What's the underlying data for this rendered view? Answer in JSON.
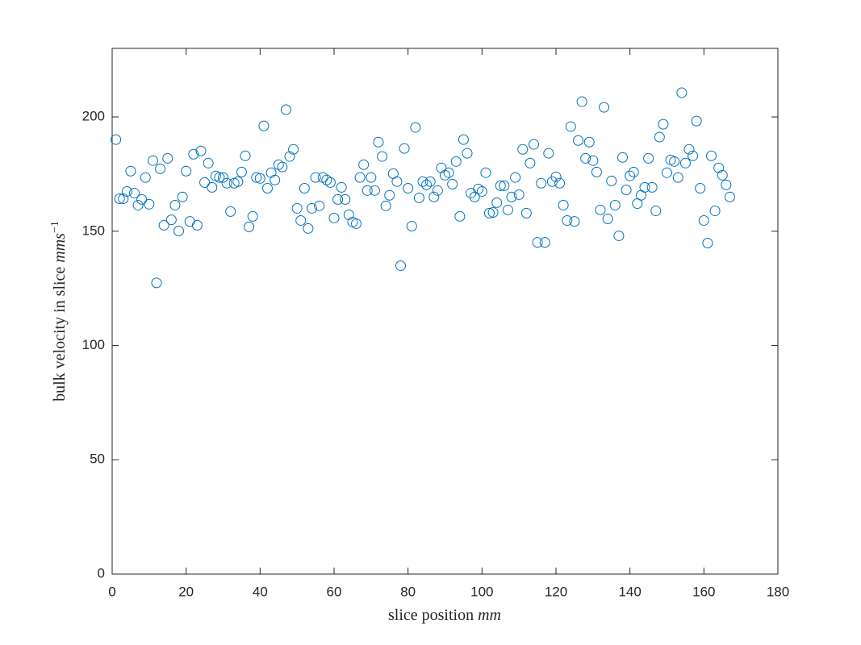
{
  "chart_data": {
    "type": "scatter",
    "x_label": "slice position",
    "x_label_unit": "mm",
    "y_label": "bulk velocity in slice",
    "y_label_unit": "mms",
    "y_label_unit_exponent": "−1",
    "color": "#0072bd",
    "marker": "circle",
    "xlim": [
      0,
      180
    ],
    "xticks": [
      0,
      20,
      40,
      60,
      80,
      100,
      120,
      140,
      160,
      180
    ],
    "ylim": [
      0,
      230
    ],
    "yticks": [
      0,
      50,
      100,
      150,
      200
    ],
    "grid": false,
    "x": [
      1,
      2,
      3,
      4,
      5,
      6,
      7,
      8,
      9,
      10,
      11,
      12,
      13,
      14,
      15,
      16,
      17,
      18,
      19,
      20,
      21,
      22,
      23,
      24,
      25,
      26,
      27,
      28,
      29,
      30,
      31,
      32,
      33,
      34,
      35,
      36,
      37,
      38,
      39,
      40,
      41,
      42,
      43,
      44,
      45,
      46,
      47,
      48,
      49,
      50,
      51,
      52,
      53,
      54,
      55,
      56,
      57,
      58,
      59,
      60,
      61,
      62,
      63,
      64,
      65,
      66,
      67,
      68,
      69,
      70,
      71,
      72,
      73,
      74,
      75,
      76,
      77,
      78,
      79,
      80,
      81,
      82,
      83,
      84,
      85,
      86,
      87,
      88,
      89,
      90,
      91,
      92,
      93,
      94,
      95,
      96,
      97,
      98,
      99,
      100,
      101,
      102,
      103,
      104,
      105,
      106,
      107,
      108,
      109,
      110,
      111,
      112,
      113,
      114,
      115,
      116,
      117,
      118,
      119,
      120,
      121,
      122,
      123,
      124,
      125,
      126,
      127,
      128,
      129,
      130,
      131,
      132,
      133,
      134,
      135,
      136,
      137,
      138,
      139,
      140,
      141,
      142,
      143,
      144,
      145,
      146,
      147,
      148,
      149,
      150,
      151,
      152,
      153,
      154,
      155,
      156,
      157,
      158,
      159,
      160,
      161,
      162,
      163,
      164,
      165,
      166,
      167
    ],
    "values": [
      190.1,
      164.2,
      164.2,
      167.4,
      176.3,
      166.7,
      161.4,
      163.9,
      173.5,
      161.8,
      180.9,
      127.4,
      177.3,
      152.6,
      181.9,
      155.0,
      161.4,
      150.1,
      165.0,
      176.3,
      154.3,
      183.7,
      152.6,
      185.1,
      171.3,
      179.8,
      169.2,
      174.2,
      173.5,
      173.5,
      171.0,
      158.6,
      171.0,
      171.7,
      175.9,
      183.0,
      151.9,
      156.5,
      173.5,
      173.1,
      196.1,
      168.8,
      175.6,
      172.4,
      179.1,
      178.1,
      203.2,
      182.7,
      185.8,
      160.0,
      154.7,
      168.8,
      151.2,
      160.0,
      173.5,
      161.1,
      173.5,
      172.4,
      171.3,
      155.8,
      163.9,
      169.2,
      163.9,
      157.2,
      154.0,
      153.3,
      173.5,
      179.1,
      167.8,
      173.5,
      167.8,
      189.0,
      182.7,
      161.1,
      165.7,
      175.2,
      171.7,
      134.9,
      186.2,
      168.8,
      152.2,
      195.4,
      164.6,
      171.7,
      170.3,
      171.7,
      165.0,
      167.8,
      177.7,
      174.5,
      175.6,
      170.6,
      180.5,
      156.5,
      190.1,
      184.1,
      166.7,
      165.0,
      168.5,
      167.4,
      175.6,
      157.9,
      158.2,
      162.5,
      169.9,
      169.9,
      159.3,
      165.0,
      173.5,
      166.0,
      185.8,
      157.9,
      179.8,
      188.0,
      145.1,
      171.0,
      145.1,
      184.1,
      171.7,
      173.8,
      171.0,
      161.4,
      154.7,
      195.8,
      154.3,
      189.7,
      206.7,
      181.9,
      189.0,
      180.9,
      175.9,
      159.3,
      204.2,
      155.4,
      172.0,
      161.4,
      148.0,
      182.3,
      168.1,
      174.2,
      175.9,
      162.1,
      165.7,
      169.2,
      181.9,
      169.2,
      158.9,
      191.2,
      196.8,
      175.6,
      181.2,
      180.5,
      173.5,
      210.6,
      179.8,
      185.8,
      183.0,
      198.2,
      168.8,
      154.7,
      144.8,
      183.0,
      158.9,
      177.7,
      174.5,
      170.3,
      165.0
    ]
  }
}
